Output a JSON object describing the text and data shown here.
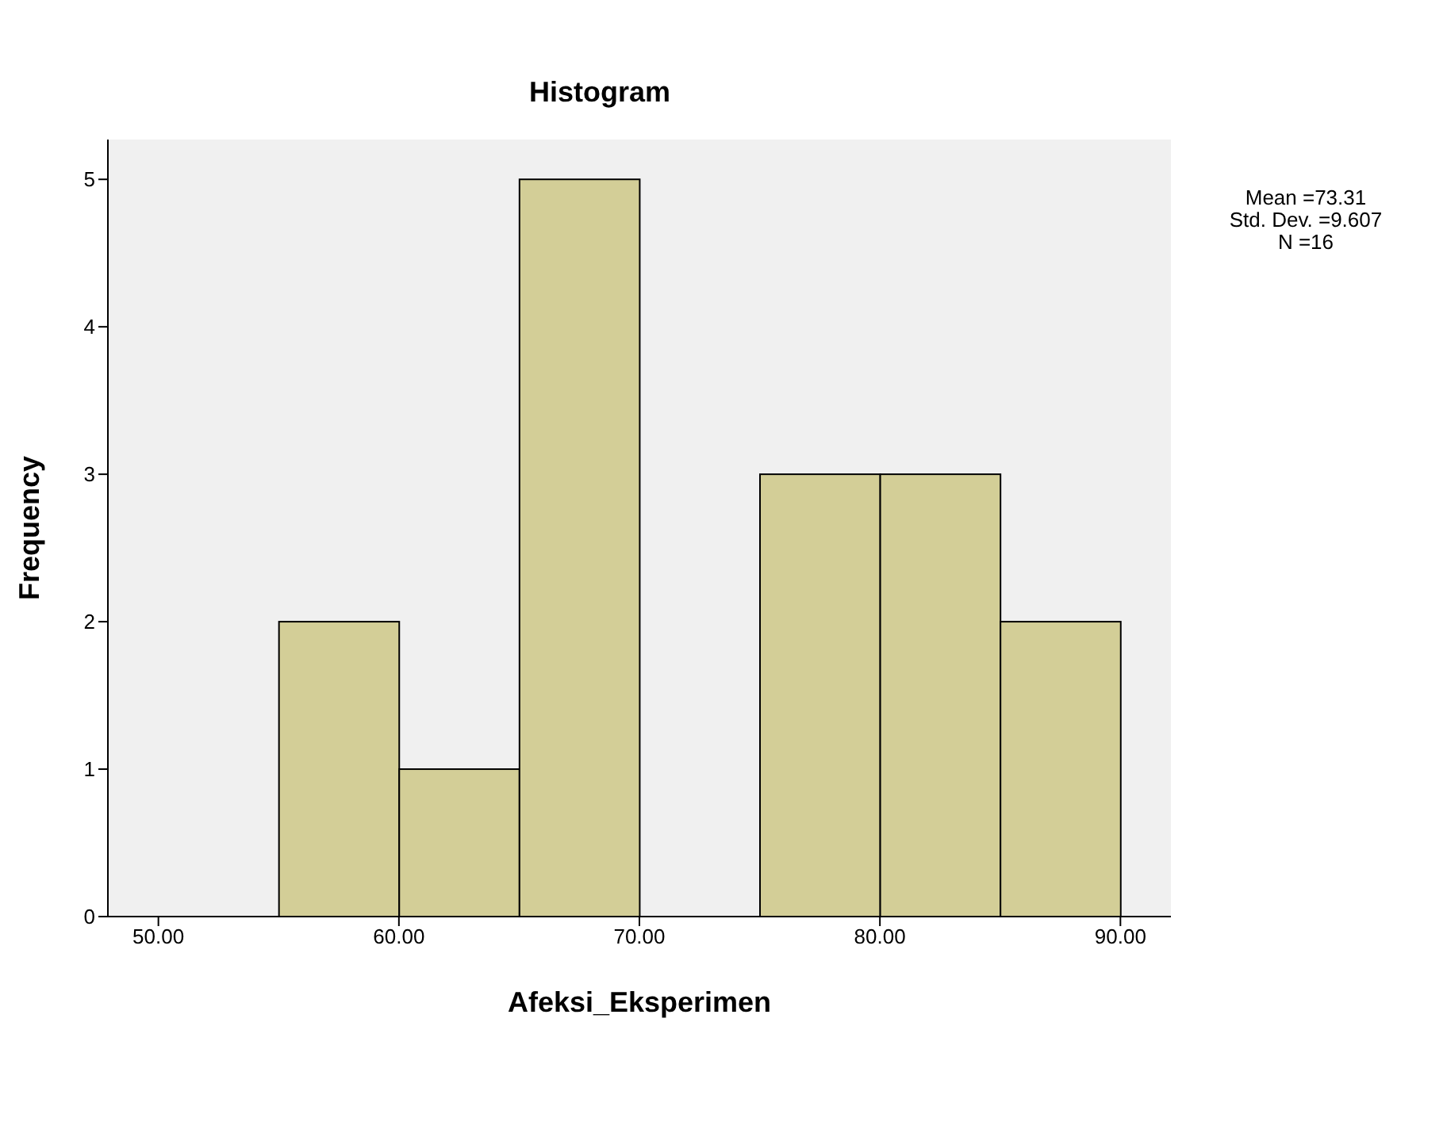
{
  "chart_data": {
    "type": "histogram",
    "title": "Histogram",
    "xlabel": "Afeksi_Eksperimen",
    "ylabel": "Frequency",
    "bins": [
      55,
      60,
      65,
      70,
      75,
      80,
      85,
      90
    ],
    "values": [
      2,
      1,
      5,
      0,
      3,
      3,
      2
    ],
    "color": "#d3ce97",
    "xlim": [
      47.9,
      92.1
    ],
    "xticks": [
      {
        "value": 50,
        "label": "50.00"
      },
      {
        "value": 60,
        "label": "60.00"
      },
      {
        "value": 70,
        "label": "70.00"
      },
      {
        "value": 80,
        "label": "80.00"
      },
      {
        "value": 90,
        "label": "90.00"
      }
    ],
    "ylim": [
      0,
      5.27
    ],
    "yticks": [
      0,
      1,
      2,
      3,
      4,
      5
    ],
    "grid": false,
    "annotations": [
      "Mean =73.31",
      "Std. Dev. =9.607",
      "N =16"
    ]
  }
}
